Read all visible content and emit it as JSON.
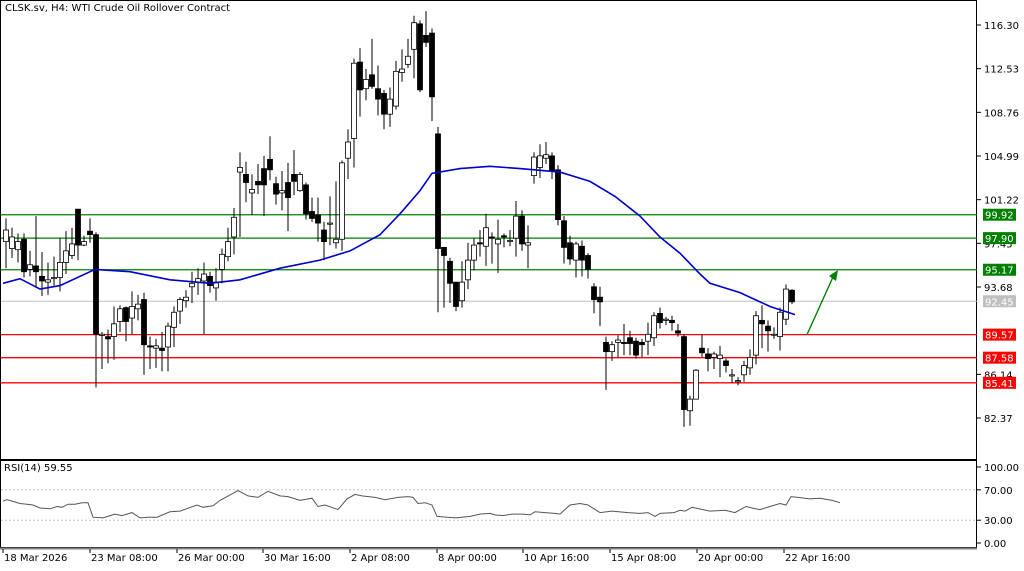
{
  "header": {
    "title": "CLSK.sv, H4:  WTI Crude Oil Rollover Contract"
  },
  "rsi_panel": {
    "label": "RSI(14) 59.55",
    "levels": [
      "100.00",
      "70.00",
      "30.00",
      "0.00"
    ]
  },
  "colors": {
    "support": "#ff0000",
    "resistance": "#008000",
    "ma_line": "#0000cc",
    "arrow": "#008000",
    "current_price": "#c0c0c0",
    "candle": "#000000"
  },
  "chart_data": {
    "type": "candlestick",
    "title": "CLSK.sv, H4: WTI Crude Oil Rollover Contract",
    "xlabel": "",
    "ylabel": "",
    "ylim": [
      80.3,
      117.6
    ],
    "price_axis_ticks": [
      "116.30",
      "112.53",
      "108.76",
      "104.99",
      "101.22",
      "97.45",
      "93.68",
      "86.14",
      "82.37"
    ],
    "time_axis_ticks": [
      "18 Mar 2026",
      "23 Mar 08:00",
      "26 Mar 00:00",
      "30 Mar 16:00",
      "2 Apr 08:00",
      "8 Apr 00:00",
      "10 Apr 16:00",
      "15 Apr 08:00",
      "20 Apr 00:00",
      "22 Apr 16:00"
    ],
    "current_price": 92.45,
    "resistance_levels": [
      99.92,
      97.9,
      95.17
    ],
    "support_levels": [
      89.57,
      87.58,
      85.41
    ],
    "price_labels": [
      "99.92",
      "97.90",
      "95.17",
      "92.45",
      "89.57",
      "87.58",
      "85.41"
    ],
    "moving_average": [
      [
        3,
        94.0
      ],
      [
        20,
        94.4
      ],
      [
        40,
        93.5
      ],
      [
        60,
        93.8
      ],
      [
        95,
        95.2
      ],
      [
        130,
        95.0
      ],
      [
        170,
        94.3
      ],
      [
        210,
        94.0
      ],
      [
        240,
        94.3
      ],
      [
        280,
        95.3
      ],
      [
        320,
        96.0
      ],
      [
        350,
        96.8
      ],
      [
        380,
        98.2
      ],
      [
        400,
        100.0
      ],
      [
        420,
        102.0
      ],
      [
        432,
        103.5
      ],
      [
        460,
        103.9
      ],
      [
        490,
        104.1
      ],
      [
        520,
        103.9
      ],
      [
        560,
        103.6
      ],
      [
        590,
        102.8
      ],
      [
        615,
        101.5
      ],
      [
        640,
        99.8
      ],
      [
        660,
        98.0
      ],
      [
        680,
        96.6
      ],
      [
        700,
        94.8
      ],
      [
        710,
        94.0
      ],
      [
        740,
        93.2
      ],
      [
        770,
        92.0
      ],
      [
        795,
        91.3
      ]
    ],
    "candles": [
      [
        6,
        97.6,
        98.6,
        99.6,
        95.3
      ],
      [
        12,
        97.0,
        98.0,
        98.8,
        96.2
      ],
      [
        18,
        96.9,
        97.6,
        98.3,
        95.8
      ],
      [
        24,
        97.8,
        95.0,
        98.3,
        94.5
      ],
      [
        30,
        95.2,
        95.6,
        96.8,
        94.6
      ],
      [
        36,
        95.5,
        95.0,
        99.8,
        93.6
      ],
      [
        42,
        94.6,
        94.2,
        96.7,
        92.9
      ],
      [
        48,
        94.1,
        94.3,
        95.8,
        93.0
      ],
      [
        54,
        94.4,
        94.5,
        96.3,
        93.8
      ],
      [
        60,
        94.5,
        95.8,
        97.9,
        93.3
      ],
      [
        66,
        95.8,
        96.8,
        98.5,
        94.8
      ],
      [
        72,
        96.4,
        97.4,
        98.8,
        96.1
      ],
      [
        78,
        100.4,
        97.3,
        100.4,
        96.0
      ],
      [
        84,
        97.3,
        97.6,
        98.1,
        97.2
      ],
      [
        90,
        98.5,
        98.2,
        99.6,
        97.5
      ],
      [
        96,
        98.2,
        89.6,
        98.4,
        85.0
      ],
      [
        102,
        89.5,
        89.6,
        89.8,
        86.6
      ],
      [
        108,
        89.4,
        89.2,
        90.0,
        87.1
      ],
      [
        114,
        89.4,
        90.5,
        92.0,
        87.4
      ],
      [
        120,
        90.7,
        91.8,
        92.1,
        89.8
      ],
      [
        126,
        91.9,
        90.7,
        92.0,
        89.0
      ],
      [
        132,
        91.0,
        92.0,
        93.3,
        89.6
      ],
      [
        138,
        91.8,
        92.2,
        93.0,
        90.8
      ],
      [
        144,
        92.6,
        88.7,
        93.2,
        86.1
      ],
      [
        150,
        88.6,
        88.5,
        89.4,
        86.6
      ],
      [
        156,
        88.4,
        88.6,
        89.2,
        86.7
      ],
      [
        162,
        88.4,
        88.2,
        89.8,
        86.4
      ],
      [
        168,
        88.5,
        90.3,
        90.6,
        86.4
      ],
      [
        174,
        90.2,
        91.5,
        92.0,
        88.5
      ],
      [
        180,
        91.6,
        92.6,
        92.8,
        90.5
      ],
      [
        186,
        92.5,
        92.8,
        93.4,
        91.9
      ],
      [
        192,
        93.7,
        94.0,
        95.0,
        92.3
      ],
      [
        198,
        94.1,
        94.4,
        95.3,
        93.0
      ],
      [
        204,
        94.2,
        94.8,
        95.8,
        89.6
      ],
      [
        210,
        94.6,
        93.8,
        95.0,
        93.2
      ],
      [
        216,
        93.6,
        94.1,
        95.3,
        92.5
      ],
      [
        222,
        95.2,
        96.5,
        97.0,
        94.0
      ],
      [
        228,
        96.3,
        97.6,
        98.8,
        95.9
      ],
      [
        234,
        98.0,
        99.7,
        100.5,
        96.5
      ],
      [
        240,
        103.6,
        104.0,
        105.3,
        98.0
      ],
      [
        246,
        103.4,
        102.7,
        104.5,
        101.0
      ],
      [
        252,
        101.8,
        102.1,
        103.4,
        99.9
      ],
      [
        258,
        102.8,
        102.5,
        104.3,
        101.7
      ],
      [
        264,
        103.9,
        102.5,
        105.0,
        99.8
      ],
      [
        270,
        104.7,
        103.8,
        106.7,
        102.9
      ],
      [
        276,
        102.6,
        101.7,
        103.2,
        100.8
      ],
      [
        282,
        101.8,
        102.0,
        103.7,
        100.3
      ],
      [
        288,
        102.7,
        101.4,
        104.4,
        98.5
      ],
      [
        294,
        103.4,
        102.8,
        105.5,
        101.6
      ],
      [
        300,
        102.0,
        103.4,
        103.6,
        101.9
      ],
      [
        306,
        102.5,
        100.0,
        102.7,
        99.5
      ],
      [
        312,
        100.2,
        99.6,
        101.4,
        99.3
      ],
      [
        318,
        99.9,
        99.2,
        101.4,
        97.6
      ],
      [
        324,
        98.6,
        97.6,
        99.3,
        96.0
      ],
      [
        330,
        99.1,
        99.2,
        101.5,
        97.3
      ],
      [
        336,
        97.5,
        97.8,
        102.8,
        97.0
      ],
      [
        342,
        97.8,
        104.4,
        104.6,
        96.8
      ],
      [
        348,
        104.8,
        106.2,
        107.3,
        103.0
      ],
      [
        354,
        106.5,
        113.0,
        113.4,
        104.0
      ],
      [
        360,
        113.1,
        110.7,
        114.3,
        108.4
      ],
      [
        366,
        110.8,
        111.6,
        112.5,
        109.8
      ],
      [
        372,
        112.0,
        111.0,
        115.1,
        110.8
      ],
      [
        378,
        110.8,
        109.9,
        112.8,
        108.5
      ],
      [
        384,
        110.4,
        108.6,
        110.7,
        107.3
      ],
      [
        390,
        108.6,
        109.9,
        110.9,
        107.5
      ],
      [
        396,
        109.3,
        112.3,
        113.2,
        109.0
      ],
      [
        402,
        112.2,
        112.5,
        114.2,
        111.4
      ],
      [
        408,
        112.9,
        113.6,
        115.1,
        112.6
      ],
      [
        414,
        114.2,
        116.5,
        117.1,
        111.7
      ],
      [
        420,
        116.4,
        110.7,
        116.7,
        110.5
      ],
      [
        426,
        115.4,
        114.8,
        117.5,
        114.4
      ],
      [
        432,
        115.6,
        110.1,
        116.0,
        108.0
      ],
      [
        438,
        106.9,
        97.0,
        107.5,
        91.5
      ],
      [
        444,
        97.1,
        96.4,
        97.1,
        91.9
      ],
      [
        450,
        95.9,
        94.0,
        96.2,
        92.3
      ],
      [
        456,
        94.1,
        92.0,
        94.1,
        91.6
      ],
      [
        462,
        92.5,
        94.1,
        95.9,
        91.9
      ],
      [
        468,
        94.3,
        96.0,
        97.5,
        93.5
      ],
      [
        474,
        96.0,
        97.3,
        97.9,
        95.1
      ],
      [
        480,
        97.5,
        97.4,
        98.6,
        96.3
      ],
      [
        486,
        97.2,
        98.8,
        100.0,
        95.5
      ],
      [
        492,
        98.0,
        97.9,
        98.4,
        95.7
      ],
      [
        498,
        97.4,
        97.8,
        99.5,
        94.9
      ],
      [
        504,
        98.1,
        98.0,
        98.3,
        97.1
      ],
      [
        510,
        97.6,
        97.7,
        98.6,
        97.2
      ],
      [
        516,
        97.9,
        99.8,
        101.1,
        96.3
      ],
      [
        522,
        99.8,
        97.4,
        100.3,
        96.8
      ],
      [
        528,
        97.3,
        97.5,
        99.0,
        95.3
      ],
      [
        534,
        103.3,
        104.9,
        105.3,
        102.6
      ],
      [
        540,
        104.0,
        105.0,
        106.0,
        103.1
      ],
      [
        546,
        104.8,
        105.1,
        106.2,
        104.3
      ],
      [
        552,
        105.0,
        103.7,
        105.3,
        103.0
      ],
      [
        558,
        103.8,
        99.5,
        104.2,
        99.0
      ],
      [
        564,
        99.4,
        97.1,
        99.8,
        95.7
      ],
      [
        570,
        97.5,
        96.1,
        98.1,
        95.6
      ],
      [
        576,
        96.0,
        97.4,
        97.6,
        94.5
      ],
      [
        582,
        97.2,
        96.0,
        97.7,
        94.6
      ],
      [
        588,
        96.4,
        95.2,
        96.6,
        94.4
      ],
      [
        594,
        93.7,
        92.6,
        94.0,
        91.4
      ],
      [
        600,
        92.8,
        92.4,
        93.7,
        90.3
      ],
      [
        606,
        88.9,
        88.1,
        89.4,
        84.8
      ],
      [
        612,
        88.1,
        88.7,
        89.0,
        87.3
      ],
      [
        618,
        88.9,
        89.1,
        89.5,
        87.6
      ],
      [
        624,
        88.9,
        88.8,
        90.5,
        87.8
      ],
      [
        630,
        89.3,
        88.8,
        89.9,
        87.8
      ],
      [
        636,
        89.0,
        87.8,
        89.3,
        87.5
      ],
      [
        642,
        88.9,
        88.7,
        89.2,
        87.6
      ],
      [
        648,
        89.0,
        89.6,
        90.6,
        87.8
      ],
      [
        654,
        89.3,
        91.2,
        91.5,
        88.6
      ],
      [
        660,
        91.4,
        90.6,
        91.9,
        90.1
      ],
      [
        666,
        90.8,
        90.9,
        91.1,
        90.4
      ],
      [
        672,
        90.8,
        90.6,
        91.2,
        89.9
      ],
      [
        678,
        89.9,
        89.7,
        90.5,
        89.4
      ],
      [
        684,
        89.4,
        83.1,
        89.6,
        81.6
      ],
      [
        690,
        83.0,
        84.0,
        84.3,
        81.7
      ],
      [
        696,
        84.0,
        86.5,
        86.6,
        84.1
      ],
      [
        702,
        88.4,
        88.0,
        89.6,
        87.6
      ],
      [
        708,
        87.9,
        87.5,
        88.4,
        86.4
      ],
      [
        714,
        87.6,
        87.9,
        88.1,
        86.6
      ],
      [
        720,
        87.5,
        87.8,
        88.6,
        85.9
      ],
      [
        726,
        87.3,
        86.9,
        87.5,
        86.3
      ],
      [
        732,
        86.0,
        86.1,
        86.6,
        85.4
      ],
      [
        738,
        85.5,
        85.6,
        85.9,
        85.2
      ],
      [
        744,
        86.1,
        86.9,
        87.3,
        85.5
      ],
      [
        750,
        86.7,
        87.6,
        88.3,
        86.1
      ],
      [
        756,
        87.8,
        91.2,
        91.6,
        87.0
      ],
      [
        762,
        90.8,
        90.5,
        92.1,
        88.4
      ],
      [
        768,
        90.3,
        89.9,
        90.8,
        88.1
      ],
      [
        774,
        89.6,
        89.6,
        90.2,
        89.2
      ],
      [
        780,
        89.4,
        91.5,
        91.9,
        88.2
      ],
      [
        786,
        90.9,
        93.5,
        93.9,
        90.4
      ],
      [
        792,
        93.4,
        92.4,
        93.5,
        92.2
      ]
    ],
    "rsi_values": [
      [
        3,
        55
      ],
      [
        7,
        57
      ],
      [
        15,
        54
      ],
      [
        20,
        52
      ],
      [
        27,
        51
      ],
      [
        33,
        50
      ],
      [
        40,
        46
      ],
      [
        50,
        45
      ],
      [
        57,
        48
      ],
      [
        62,
        47
      ],
      [
        68,
        51
      ],
      [
        75,
        51
      ],
      [
        82,
        53
      ],
      [
        88,
        53
      ],
      [
        93,
        34
      ],
      [
        103,
        33
      ],
      [
        115,
        38
      ],
      [
        122,
        36
      ],
      [
        132,
        40
      ],
      [
        140,
        33
      ],
      [
        148,
        34
      ],
      [
        157,
        34
      ],
      [
        170,
        41
      ],
      [
        180,
        42
      ],
      [
        197,
        50
      ],
      [
        203,
        47
      ],
      [
        213,
        49
      ],
      [
        220,
        56
      ],
      [
        238,
        69
      ],
      [
        248,
        62
      ],
      [
        258,
        60
      ],
      [
        268,
        68
      ],
      [
        280,
        62
      ],
      [
        288,
        61
      ],
      [
        300,
        56
      ],
      [
        312,
        59
      ],
      [
        318,
        48
      ],
      [
        325,
        50
      ],
      [
        338,
        44
      ],
      [
        347,
        58
      ],
      [
        355,
        64
      ],
      [
        362,
        62
      ],
      [
        375,
        60
      ],
      [
        385,
        57
      ],
      [
        398,
        60
      ],
      [
        408,
        61
      ],
      [
        413,
        60
      ],
      [
        418,
        52
      ],
      [
        425,
        53
      ],
      [
        432,
        50
      ],
      [
        437,
        35
      ],
      [
        447,
        34
      ],
      [
        456,
        33
      ],
      [
        470,
        35
      ],
      [
        480,
        38
      ],
      [
        490,
        39
      ],
      [
        495,
        37
      ],
      [
        503,
        36
      ],
      [
        512,
        38
      ],
      [
        523,
        38
      ],
      [
        530,
        37
      ],
      [
        535,
        41
      ],
      [
        545,
        40
      ],
      [
        555,
        39
      ],
      [
        560,
        38
      ],
      [
        570,
        50
      ],
      [
        580,
        52
      ],
      [
        588,
        50
      ],
      [
        600,
        40
      ],
      [
        612,
        42
      ],
      [
        628,
        40
      ],
      [
        640,
        39
      ],
      [
        648,
        40
      ],
      [
        655,
        35
      ],
      [
        660,
        39
      ],
      [
        674,
        40
      ],
      [
        680,
        43
      ],
      [
        685,
        42
      ],
      [
        692,
        47
      ],
      [
        710,
        42
      ],
      [
        725,
        43
      ],
      [
        735,
        40
      ],
      [
        746,
        48
      ],
      [
        752,
        46
      ],
      [
        760,
        44
      ],
      [
        770,
        48
      ],
      [
        780,
        52
      ],
      [
        786,
        50
      ],
      [
        791,
        61
      ],
      [
        798,
        60
      ],
      [
        810,
        58
      ],
      [
        820,
        59
      ],
      [
        832,
        56
      ],
      [
        840,
        53
      ]
    ],
    "annotations": [
      "green arrow pointing up from 89.57 support toward 95.17 resistance"
    ]
  }
}
